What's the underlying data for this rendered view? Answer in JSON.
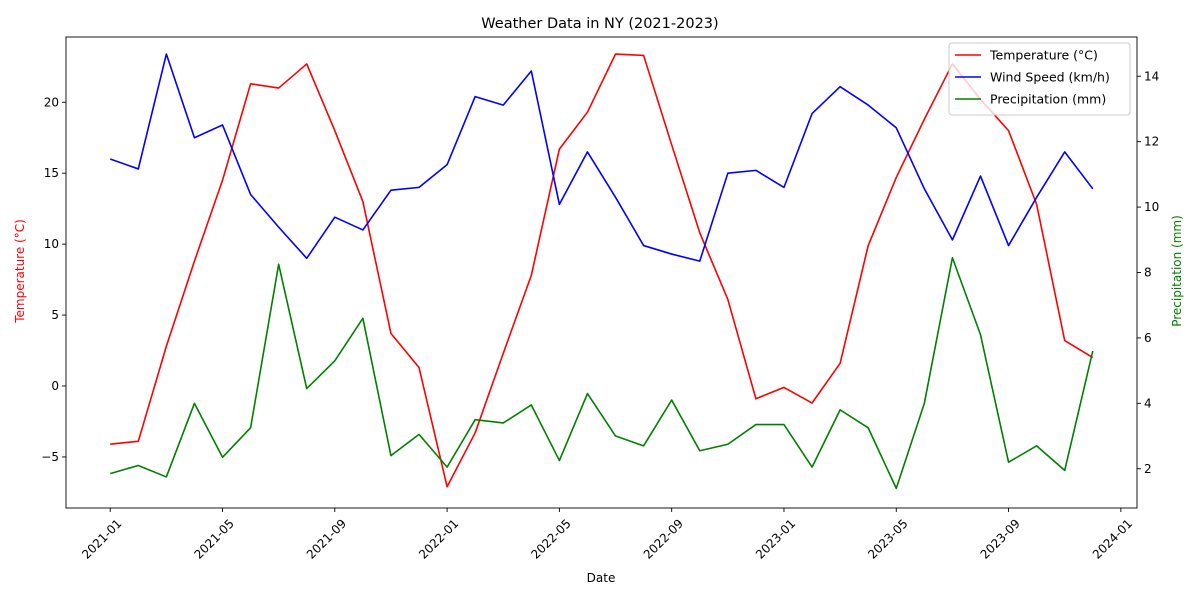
{
  "chart_data": {
    "type": "line",
    "title": "Weather Data in NY (2021-2023)",
    "xlabel": "Date",
    "ylabel_left": "Temperature (°C)",
    "ylabel_right": "Precipitation (mm)",
    "ylim_left": [
      -8.6,
      24.6
    ],
    "ylim_right": [
      0.8,
      15.2
    ],
    "yticks_left": [
      -5,
      0,
      5,
      10,
      15,
      20
    ],
    "yticks_right": [
      2,
      4,
      6,
      8,
      10,
      12,
      14
    ],
    "xticks": [
      "2021-01",
      "2021-05",
      "2021-09",
      "2022-01",
      "2022-05",
      "2022-09",
      "2023-01",
      "2023-05",
      "2023-09",
      "2024-01"
    ],
    "legend_position": "upper right",
    "grid": false,
    "x": [
      "2021-01",
      "2021-02",
      "2021-03",
      "2021-04",
      "2021-05",
      "2021-06",
      "2021-07",
      "2021-08",
      "2021-09",
      "2021-10",
      "2021-11",
      "2021-12",
      "2022-01",
      "2022-02",
      "2022-03",
      "2022-04",
      "2022-05",
      "2022-06",
      "2022-07",
      "2022-08",
      "2022-09",
      "2022-10",
      "2022-11",
      "2022-12",
      "2023-01",
      "2023-02",
      "2023-03",
      "2023-04",
      "2023-05",
      "2023-06",
      "2023-07",
      "2023-08",
      "2023-09",
      "2023-10",
      "2023-11",
      "2023-12"
    ],
    "series": [
      {
        "name": "Temperature (°C)",
        "color": "#ff0000",
        "axis": "left",
        "values": [
          -4.1,
          -3.9,
          2.8,
          8.8,
          14.5,
          21.3,
          21.0,
          22.7,
          18.0,
          13.0,
          3.7,
          1.3,
          -7.1,
          -3.3,
          2.3,
          7.8,
          16.7,
          19.3,
          23.4,
          23.3,
          17.0,
          10.8,
          6.1,
          -0.9,
          -0.1,
          -1.2,
          1.6,
          9.9,
          14.7,
          18.8,
          22.7,
          20.2,
          18.0,
          12.8,
          3.2,
          2.0
        ]
      },
      {
        "name": "Wind Speed (km/h)",
        "color": "#0000ff",
        "axis": "left",
        "values": [
          16.0,
          15.3,
          23.4,
          17.5,
          18.4,
          13.5,
          11.2,
          9.0,
          11.9,
          11.0,
          13.8,
          14.0,
          15.6,
          20.4,
          19.8,
          22.2,
          12.8,
          16.5,
          13.3,
          9.9,
          9.3,
          8.8,
          15.0,
          15.2,
          14.0,
          19.2,
          21.1,
          19.8,
          18.2,
          13.9,
          10.3,
          14.8,
          9.9,
          13.3,
          16.5,
          13.9
        ]
      },
      {
        "name": "Precipitation (mm)",
        "color": "#008000",
        "axis": "right",
        "values": [
          1.85,
          2.1,
          1.75,
          4.0,
          2.35,
          3.25,
          8.25,
          4.45,
          5.3,
          6.6,
          2.4,
          3.05,
          2.05,
          3.5,
          3.4,
          3.95,
          2.25,
          4.3,
          3.0,
          2.7,
          4.1,
          2.55,
          2.75,
          3.35,
          3.35,
          2.05,
          3.8,
          3.25,
          1.4,
          4.0,
          8.45,
          6.1,
          2.2,
          2.7,
          1.95,
          5.6
        ]
      }
    ]
  }
}
